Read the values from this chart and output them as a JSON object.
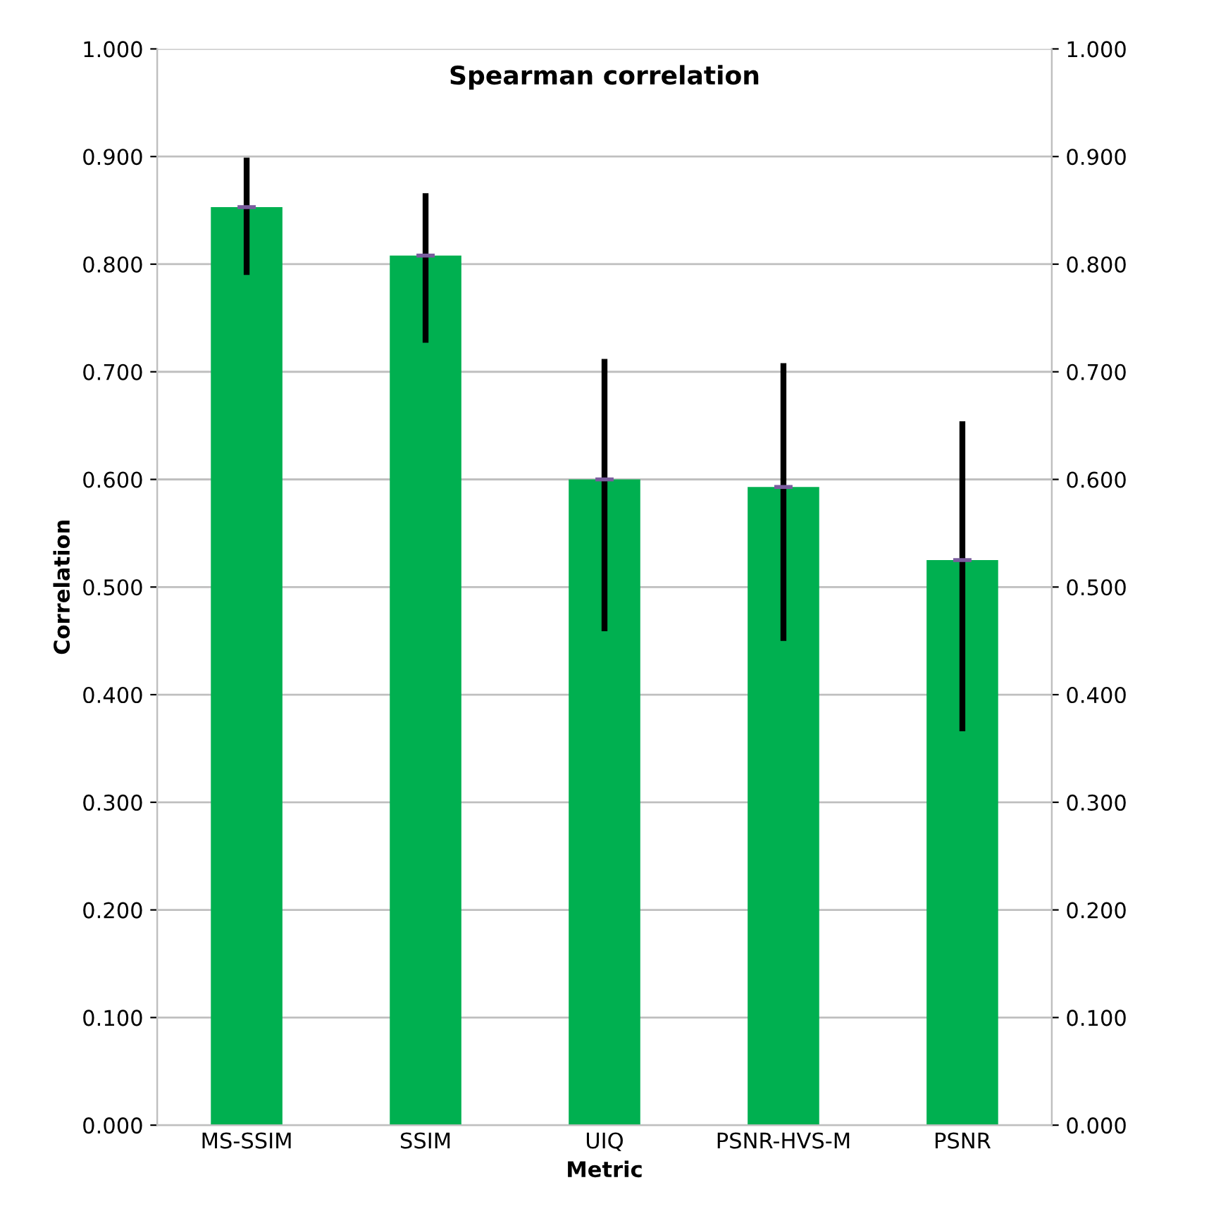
{
  "chart_data": {
    "type": "bar",
    "title": "Spearman correlation",
    "xlabel": "Metric",
    "ylabel": "Correlation",
    "categories": [
      "MS-SSIM",
      "SSIM",
      "UIQ",
      "PSNR-HVS-M",
      "PSNR"
    ],
    "values": [
      0.853,
      0.808,
      0.6,
      0.593,
      0.525
    ],
    "errors": [
      [
        0.79,
        0.899
      ],
      [
        0.727,
        0.866
      ],
      [
        0.459,
        0.712
      ],
      [
        0.45,
        0.708
      ],
      [
        0.366,
        0.654
      ]
    ],
    "color": "#00b050",
    "ylim": [
      0,
      1
    ],
    "yticks": [
      {
        "value": 0,
        "label": "0.000"
      },
      {
        "value": 0.1,
        "label": "0.100"
      },
      {
        "value": 0.2,
        "label": "0.200"
      },
      {
        "value": 0.3,
        "label": "0.300"
      },
      {
        "value": 0.4,
        "label": "0.400"
      },
      {
        "value": 0.5,
        "label": "0.500"
      },
      {
        "value": 0.6,
        "label": "0.600"
      },
      {
        "value": 0.7,
        "label": "0.700"
      },
      {
        "value": 0.8,
        "label": "0.800"
      },
      {
        "value": 0.9,
        "label": "0.900"
      },
      {
        "value": 1,
        "label": "1.000"
      }
    ],
    "y2lim": [
      0,
      1
    ],
    "y2ticks": [
      {
        "value": 0,
        "label": "0.000"
      },
      {
        "value": 0.1,
        "label": "0.100"
      },
      {
        "value": 0.2,
        "label": "0.200"
      },
      {
        "value": 0.3,
        "label": "0.300"
      },
      {
        "value": 0.4,
        "label": "0.400"
      },
      {
        "value": 0.5,
        "label": "0.500"
      },
      {
        "value": 0.6,
        "label": "0.600"
      },
      {
        "value": 0.7,
        "label": "0.700"
      },
      {
        "value": 0.8,
        "label": "0.800"
      },
      {
        "value": 0.9,
        "label": "0.900"
      },
      {
        "value": 1,
        "label": "1.000"
      }
    ],
    "grid": "y"
  }
}
